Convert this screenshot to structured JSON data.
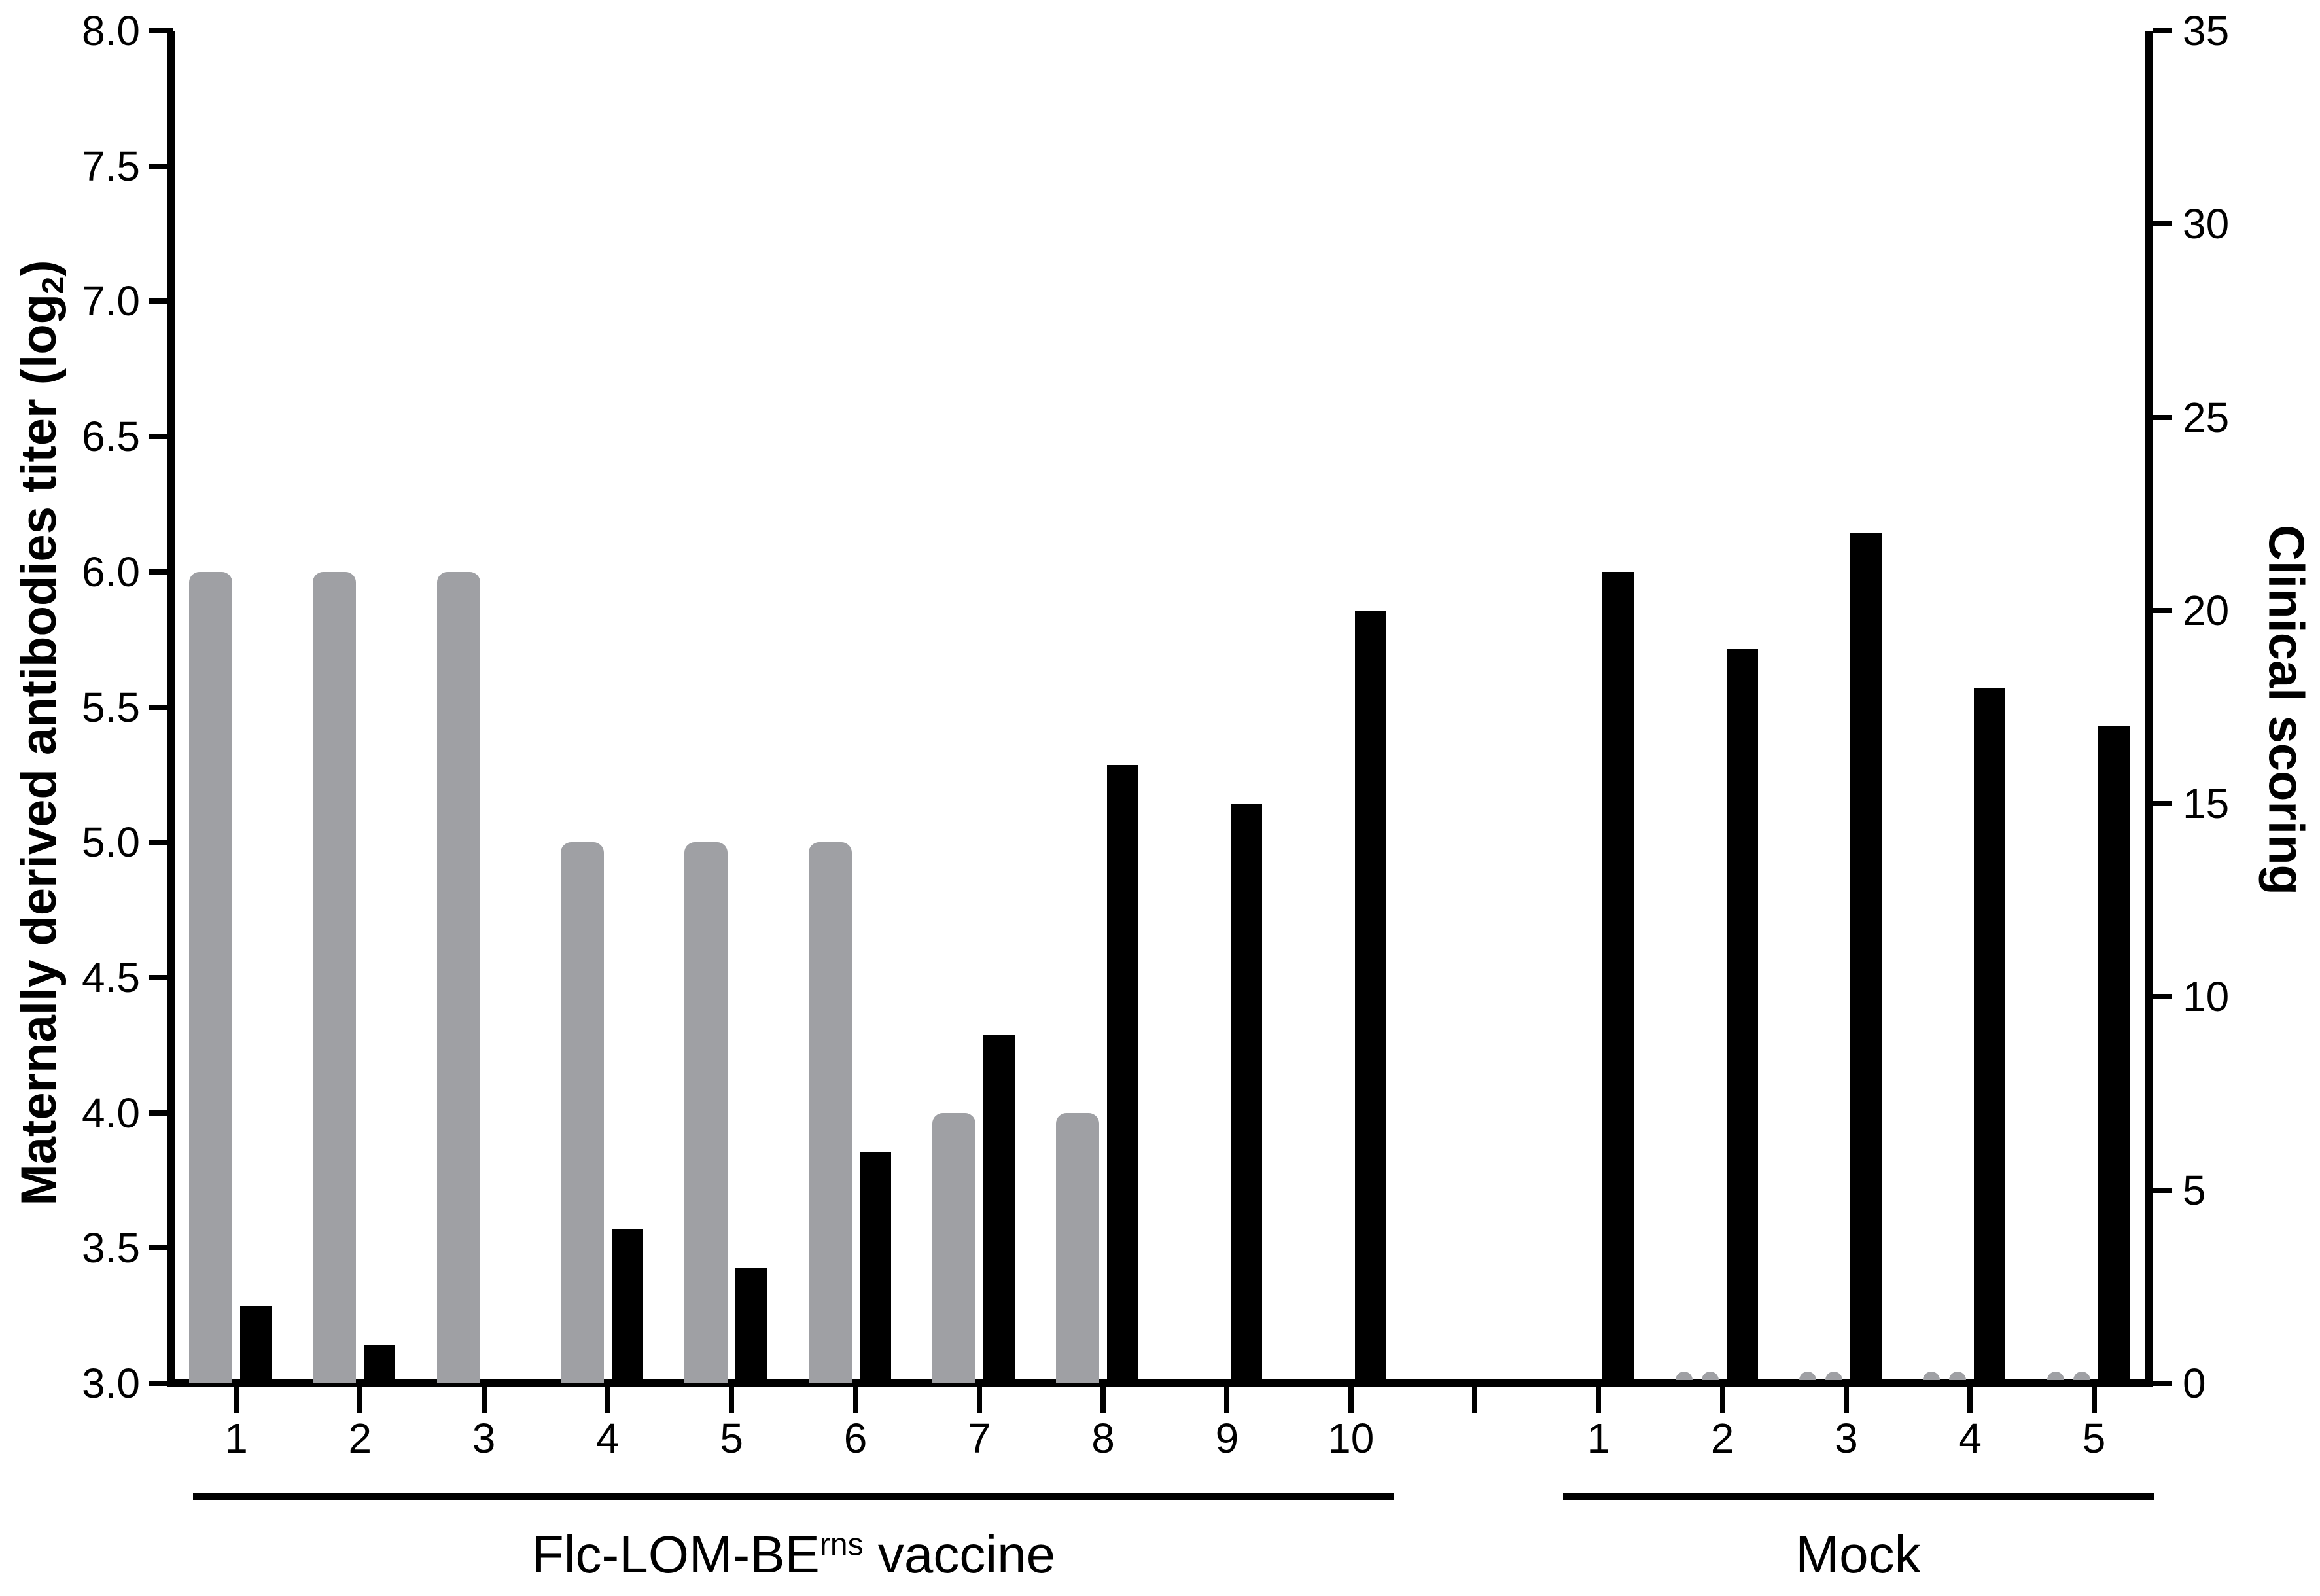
{
  "chart_data": {
    "type": "bar",
    "dual_axis": true,
    "grid": false,
    "legend": "none",
    "left_axis": {
      "label": "Maternally derived antibodies titer (log2)",
      "label_pre": "Maternally derived antibodies titer (log",
      "label_sub": "2",
      "label_post": ")",
      "min": 3.0,
      "max": 8.0,
      "tick_step": 0.5,
      "tick_labels": [
        "3.0",
        "3.5",
        "4.0",
        "4.5",
        "5.0",
        "5.5",
        "6.0",
        "6.5",
        "7.0",
        "7.5",
        "8.0"
      ]
    },
    "right_axis": {
      "label": "Clinical scoring",
      "min": 0,
      "max": 35,
      "tick_step": 5,
      "tick_labels": [
        "0",
        "5",
        "10",
        "15",
        "20",
        "25",
        "30",
        "35"
      ]
    },
    "series_meaning": {
      "gray_bars": "Maternally derived antibodies titer (log2), left axis",
      "black_bars": "Clinical scoring, right axis"
    },
    "colors": {
      "gray_bar": "#9fa0a4",
      "black_bar": "#000000"
    },
    "groups": [
      {
        "key": "vaccine",
        "label": "Flc-LOM-BErns vaccine",
        "label_pre": "Flc-LOM-BE",
        "label_sup": "rns",
        "label_post": " vaccine",
        "animals": [
          {
            "id": "1",
            "titer": 6.0,
            "clinical": 2,
            "trace_mark": false
          },
          {
            "id": "2",
            "titer": 6.0,
            "clinical": 1,
            "trace_mark": false
          },
          {
            "id": "3",
            "titer": 6.0,
            "clinical": 0,
            "trace_mark": false
          },
          {
            "id": "4",
            "titer": 5.0,
            "clinical": 4,
            "trace_mark": false
          },
          {
            "id": "5",
            "titer": 5.0,
            "clinical": 3,
            "trace_mark": false
          },
          {
            "id": "6",
            "titer": 5.0,
            "clinical": 6,
            "trace_mark": false
          },
          {
            "id": "7",
            "titer": 4.0,
            "clinical": 9,
            "trace_mark": false
          },
          {
            "id": "8",
            "titer": 4.0,
            "clinical": 16,
            "trace_mark": false
          },
          {
            "id": "9",
            "titer": 3.0,
            "clinical": 15,
            "trace_mark": false
          },
          {
            "id": "10",
            "titer": 3.0,
            "clinical": 20,
            "trace_mark": false
          }
        ]
      },
      {
        "key": "mock",
        "label": "Mock",
        "animals": [
          {
            "id": "1",
            "titer": 3.0,
            "clinical": 21,
            "trace_mark": false
          },
          {
            "id": "2",
            "titer": 3.0,
            "clinical": 19,
            "trace_mark": true
          },
          {
            "id": "3",
            "titer": 3.0,
            "clinical": 22,
            "trace_mark": true
          },
          {
            "id": "4",
            "titer": 3.0,
            "clinical": 18,
            "trace_mark": true
          },
          {
            "id": "5",
            "titer": 3.0,
            "clinical": 17,
            "trace_mark": true
          }
        ]
      }
    ]
  }
}
